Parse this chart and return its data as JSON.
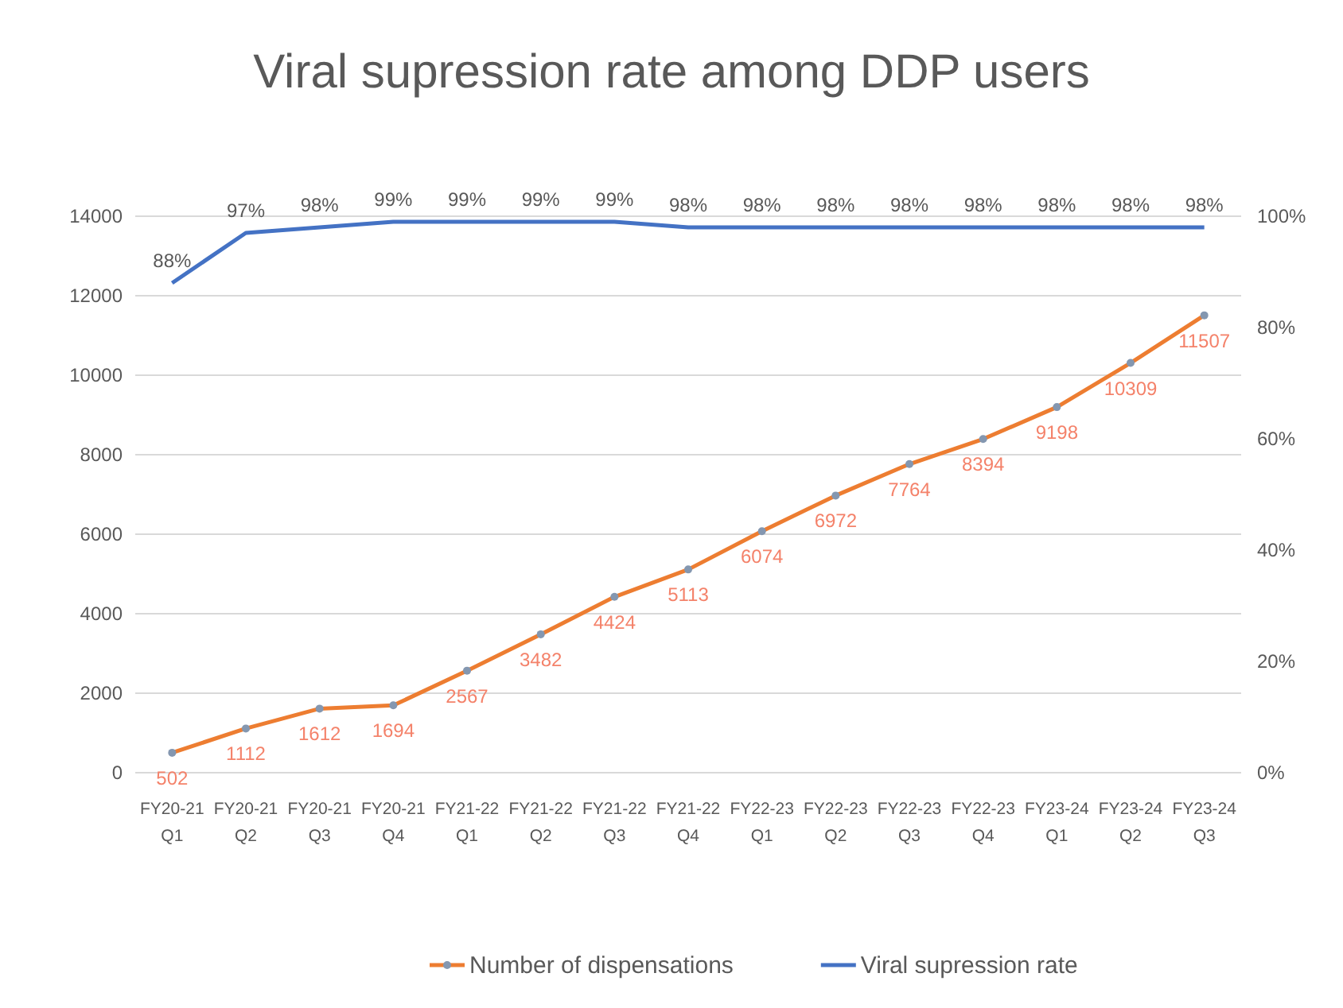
{
  "chart_data": {
    "type": "line",
    "title": "Viral supression rate among DDP users",
    "categories": [
      "FY20-21 Q1",
      "FY20-21 Q2",
      "FY20-21 Q3",
      "FY20-21 Q4",
      "FY21-22 Q1",
      "FY21-22 Q2",
      "FY21-22 Q3",
      "FY21-22 Q4",
      "FY22-23 Q1",
      "FY22-23 Q2",
      "FY22-23 Q3",
      "FY22-23 Q4",
      "FY23-24 Q1",
      "FY23-24 Q2",
      "FY23-24 Q3"
    ],
    "series": [
      {
        "name": "Number of dispensations",
        "color": "#ed7d31",
        "marker": "circle",
        "values": [
          502,
          1112,
          1612,
          1694,
          2567,
          3482,
          4424,
          5113,
          6074,
          6972,
          7764,
          8394,
          9198,
          10309,
          11507
        ],
        "value_labels": [
          "502",
          "1112",
          "1612",
          "1694",
          "2567",
          "3482",
          "4424",
          "5113",
          "6074",
          "6972",
          "7764",
          "8394",
          "9198",
          "10309",
          "11507"
        ]
      },
      {
        "name": "Viral supression rate",
        "color": "#4472c4",
        "axis": "y2",
        "marker": "none",
        "values": [
          88,
          97,
          98,
          99,
          99,
          99,
          99,
          98,
          98,
          98,
          98,
          98,
          98,
          98,
          98
        ],
        "value_labels": [
          "88%",
          "97%",
          "98%",
          "99%",
          "99%",
          "99%",
          "99%",
          "98%",
          "98%",
          "98%",
          "98%",
          "98%",
          "98%",
          "98%",
          "98%"
        ]
      }
    ],
    "ylim": [
      0,
      14000
    ],
    "yticks": [
      0,
      2000,
      4000,
      6000,
      8000,
      10000,
      12000,
      14000
    ],
    "y2lim": [
      0,
      100
    ],
    "y2ticks": [
      {
        "value": 0,
        "label": "0%"
      },
      {
        "value": 20,
        "label": "20%"
      },
      {
        "value": 40,
        "label": "40%"
      },
      {
        "value": 60,
        "label": "60%"
      },
      {
        "value": 80,
        "label": "80%"
      },
      {
        "value": 100,
        "label": "100%"
      }
    ],
    "grid": "y",
    "legend": "bottom",
    "line_style": "solid"
  }
}
